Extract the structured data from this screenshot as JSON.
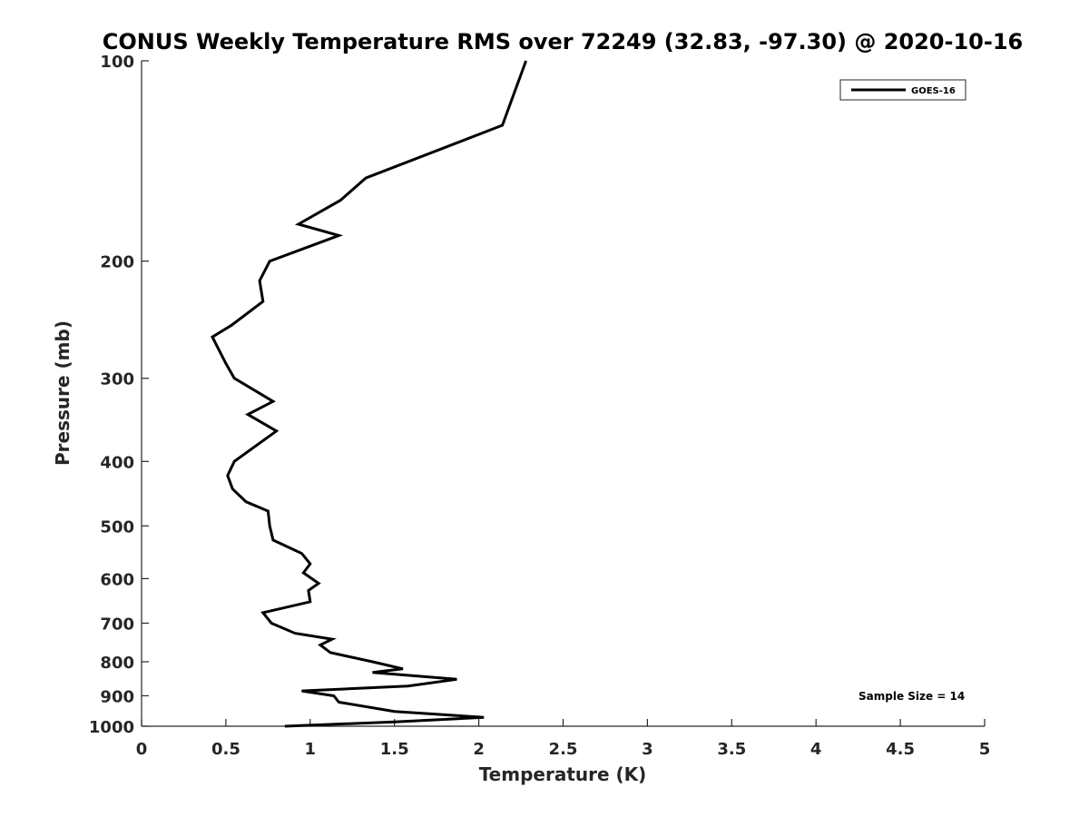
{
  "chart_data": {
    "type": "line",
    "title": "CONUS Weekly Temperature RMS over 72249 (32.83, -97.30) @ 2020-10-16",
    "xlabel": "Temperature (K)",
    "ylabel": "Pressure (mb)",
    "xlim": [
      0,
      5
    ],
    "ylim": [
      1000,
      100
    ],
    "yscale": "log",
    "y_reversed": true,
    "grid": false,
    "legend_position": "top-right",
    "x_ticks": [
      "0",
      "0.5",
      "1",
      "1.5",
      "2",
      "2.5",
      "3",
      "3.5",
      "4",
      "4.5",
      "5"
    ],
    "y_ticks": [
      "100",
      "200",
      "300",
      "400",
      "500",
      "600",
      "700",
      "800",
      "900",
      "1000"
    ],
    "annotation": "Sample Size = 14",
    "line_color": "#000000",
    "series": [
      {
        "name": "GOES-16",
        "points": [
          [
            2.28,
            100
          ],
          [
            2.14,
            125
          ],
          [
            1.33,
            150
          ],
          [
            1.18,
            162
          ],
          [
            0.93,
            176
          ],
          [
            1.17,
            183
          ],
          [
            0.76,
            200
          ],
          [
            0.7,
            214
          ],
          [
            0.72,
            230
          ],
          [
            0.53,
            250
          ],
          [
            0.42,
            260
          ],
          [
            0.5,
            285
          ],
          [
            0.55,
            300
          ],
          [
            0.78,
            325
          ],
          [
            0.63,
            340
          ],
          [
            0.8,
            360
          ],
          [
            0.55,
            400
          ],
          [
            0.51,
            420
          ],
          [
            0.54,
            440
          ],
          [
            0.62,
            460
          ],
          [
            0.75,
            475
          ],
          [
            0.76,
            500
          ],
          [
            0.78,
            525
          ],
          [
            0.95,
            550
          ],
          [
            1.0,
            570
          ],
          [
            0.96,
            588
          ],
          [
            1.05,
            610
          ],
          [
            0.99,
            625
          ],
          [
            1.0,
            650
          ],
          [
            0.72,
            675
          ],
          [
            0.77,
            700
          ],
          [
            0.91,
            725
          ],
          [
            1.13,
            740
          ],
          [
            1.06,
            755
          ],
          [
            1.12,
            775
          ],
          [
            1.37,
            800
          ],
          [
            1.55,
            820
          ],
          [
            1.37,
            830
          ],
          [
            1.87,
            850
          ],
          [
            1.58,
            870
          ],
          [
            0.95,
            885
          ],
          [
            1.14,
            900
          ],
          [
            1.17,
            920
          ],
          [
            1.5,
            950
          ],
          [
            2.03,
            970
          ],
          [
            1.5,
            985
          ],
          [
            0.85,
            1000
          ]
        ]
      }
    ]
  }
}
